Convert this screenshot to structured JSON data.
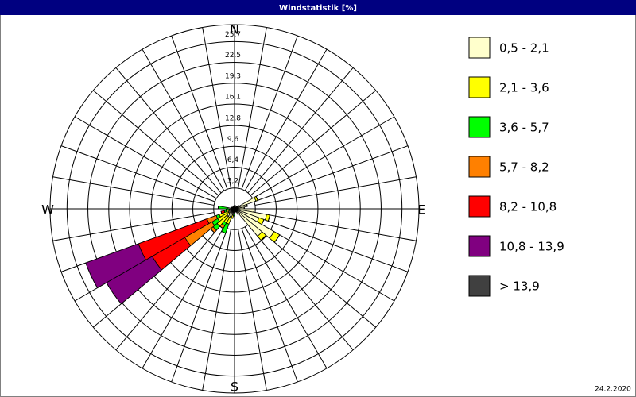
{
  "chart_data": {
    "type": "windrose",
    "title": "Windstatistik [%]",
    "direction_labels": [
      "N",
      "E",
      "S",
      "W"
    ],
    "annotation": "24.2.2020",
    "categories": [
      null,
      null,
      null,
      null,
      null,
      null,
      null,
      null,
      null,
      null,
      null,
      null,
      null,
      null,
      null,
      null,
      null,
      null,
      null,
      null,
      null,
      null,
      null,
      null,
      null,
      null,
      null,
      null,
      null,
      null,
      null,
      null,
      null,
      null,
      null,
      null
    ],
    "rlim": [
      0,
      28.3
    ],
    "rticks": [
      {
        "value": 3.2,
        "label": "3,2"
      },
      {
        "value": 6.4,
        "label": "6,4"
      },
      {
        "value": 9.6,
        "label": "9,6"
      },
      {
        "value": 12.8,
        "label": "12,8"
      },
      {
        "value": 16.1,
        "label": "16,1"
      },
      {
        "value": 19.3,
        "label": "19,3"
      },
      {
        "value": 22.5,
        "label": "22,5"
      },
      {
        "value": 25.7,
        "label": "25,7"
      }
    ],
    "series": [
      {
        "name": "0,5 - 2,1",
        "color": "#ffffcc",
        "values": [
          0.5,
          0.5,
          0.3,
          0.3,
          0.5,
          0.8,
          3.5,
          2.0,
          1.5,
          3.0,
          5.0,
          4.0,
          7.0,
          5.5,
          1.0,
          0.5,
          0.5,
          0.5,
          0.8,
          1.0,
          1.5,
          1.5,
          1.5,
          1.0,
          1.0,
          0.8,
          0.8,
          1.0,
          0.5,
          0.5,
          0.3,
          0.3,
          0.5,
          0.3,
          0.3,
          0.5
        ]
      },
      {
        "name": "2,1 - 3,6",
        "color": "#ffff00",
        "values": [
          0,
          0,
          0,
          0,
          0,
          0,
          0.3,
          0,
          0,
          0,
          0.5,
          0.8,
          1.0,
          0.8,
          0,
          0,
          0,
          0,
          0,
          0.5,
          1.0,
          1.0,
          2.0,
          2.0,
          1.5,
          0.5,
          0,
          0,
          0,
          0,
          0,
          0,
          0,
          0,
          0,
          0
        ]
      },
      {
        "name": "3,6 - 5,7",
        "color": "#00ff00",
        "values": [
          0,
          0,
          0,
          0,
          0,
          0,
          0,
          0,
          0,
          0,
          0,
          0,
          0,
          0,
          0,
          0,
          0,
          0,
          0.3,
          0,
          1.5,
          0.5,
          0.8,
          1.0,
          0.5,
          0.3,
          0.5,
          1.5,
          0,
          0,
          0,
          0,
          0,
          0,
          0,
          0
        ]
      },
      {
        "name": "5,7 - 8,2",
        "color": "#ff8000",
        "values": [
          0,
          0,
          0,
          0,
          0,
          0,
          0,
          0,
          0,
          0,
          0,
          0,
          0,
          0,
          0,
          0,
          0,
          0,
          0,
          0,
          0,
          0.5,
          0.5,
          4.8,
          1.5,
          0,
          0,
          0,
          0,
          0,
          0,
          0,
          0,
          0,
          0,
          0
        ]
      },
      {
        "name": "8,2 - 10,8",
        "color": "#ff0000",
        "values": [
          0,
          0,
          0,
          0,
          0,
          0,
          0,
          0,
          0,
          0,
          0,
          0,
          0,
          0,
          0,
          0,
          0,
          0,
          0,
          0,
          0,
          0,
          0,
          5.8,
          11.2,
          0.5,
          0,
          0,
          0,
          0,
          0,
          0,
          0,
          0,
          0,
          0
        ]
      },
      {
        "name": "10,8 - 13,9",
        "color": "#800080",
        "values": [
          0,
          0,
          0,
          0,
          0,
          0,
          0,
          0,
          0,
          0,
          0,
          0,
          0,
          0,
          0,
          0,
          0,
          0,
          0,
          0,
          0,
          0,
          0,
          8.1,
          8.6,
          0,
          0,
          0,
          0,
          0,
          0,
          0,
          0,
          0,
          0,
          0
        ]
      },
      {
        "name": "> 13,9",
        "color": "#404040",
        "values": [
          0,
          0,
          0,
          0,
          0,
          0,
          0,
          0,
          0,
          0,
          0,
          0,
          0,
          0,
          0,
          0,
          0,
          0,
          0,
          0,
          0,
          0,
          0,
          0,
          0,
          0,
          0,
          0,
          0,
          0,
          0,
          0,
          0,
          0,
          0,
          0
        ]
      }
    ]
  }
}
